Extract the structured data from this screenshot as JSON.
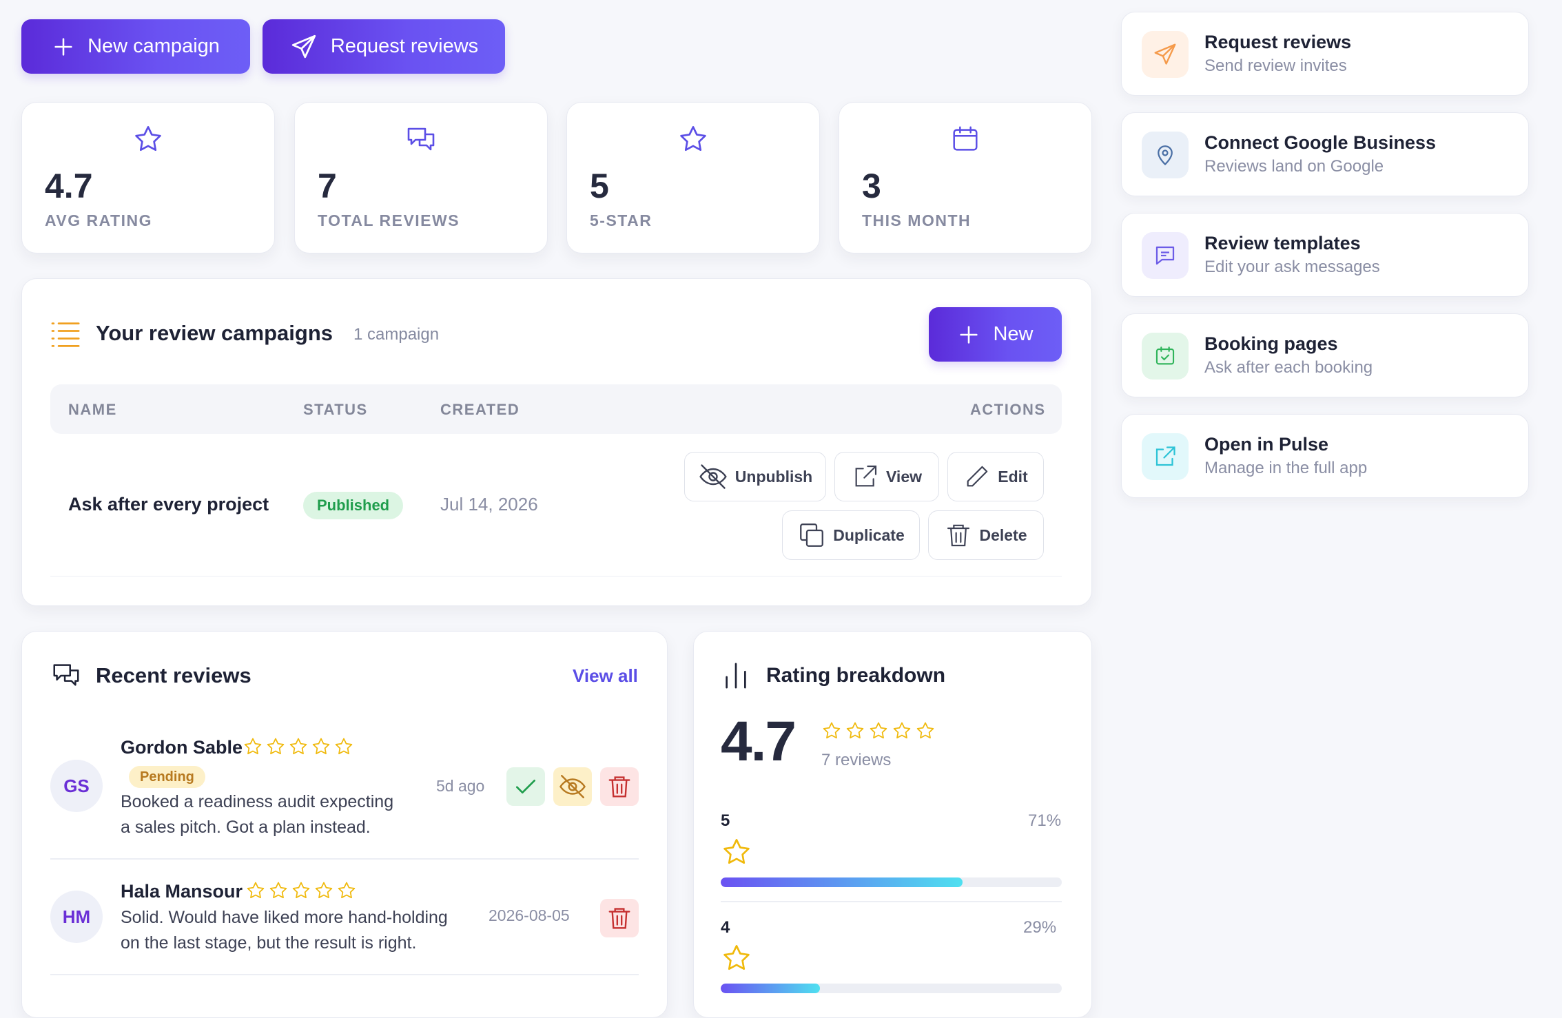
{
  "toolbar": {
    "new_campaign_label": "New campaign",
    "request_reviews_label": "Request reviews"
  },
  "stats": [
    {
      "value": "4.7",
      "label": "AVG RATING",
      "icon": "star-icon"
    },
    {
      "value": "7",
      "label": "TOTAL REVIEWS",
      "icon": "chat-bubbles-icon"
    },
    {
      "value": "5",
      "label": "5-STAR",
      "icon": "star-icon"
    },
    {
      "value": "3",
      "label": "THIS MONTH",
      "icon": "calendar-icon"
    }
  ],
  "campaigns": {
    "title": "Your review campaigns",
    "count": "1 campaign",
    "new_label": "New",
    "columns": {
      "name": "NAME",
      "status": "STATUS",
      "created": "CREATED",
      "actions": "ACTIONS"
    },
    "rows": [
      {
        "name": "Ask after every project",
        "status": "Published",
        "created": "Jul 14, 2026",
        "actions": {
          "unpublish": "Unpublish",
          "view": "View",
          "edit": "Edit",
          "duplicate": "Duplicate",
          "delete": "Delete"
        }
      }
    ]
  },
  "recent_reviews": {
    "title": "Recent reviews",
    "view_all": "View all",
    "items": [
      {
        "initials": "GS",
        "name": "Gordon Sable",
        "badge": "Pending",
        "text_line1": "Booked a readiness audit expecting",
        "text_line2": "a sales pitch. Got a plan instead.",
        "time": "5d ago"
      },
      {
        "initials": "HM",
        "name": "Hala Mansour",
        "text_line1": "Solid. Would have liked more hand-holding",
        "text_line2": "on the last stage, but the result is right.",
        "time": "2026-08-05"
      }
    ]
  },
  "rating_breakdown": {
    "title": "Rating breakdown",
    "average": "4.7",
    "count_label": "7 reviews",
    "rows": [
      {
        "stars": "5",
        "percent_label": "71%",
        "fraction": 0.71
      },
      {
        "stars": "4",
        "percent_label": "29%",
        "fraction": 0.29
      }
    ]
  },
  "sidebar": {
    "items": [
      {
        "title": "Request reviews",
        "subtitle": "Send review invites",
        "icon": "paper-plane-icon",
        "color": "#f59a4a"
      },
      {
        "title": "Connect Google Business",
        "subtitle": "Reviews land on Google",
        "icon": "map-pin-icon",
        "color": "#4a6fa5"
      },
      {
        "title": "Review templates",
        "subtitle": "Edit your ask messages",
        "icon": "message-square-icon",
        "color": "#6c5ce7"
      },
      {
        "title": "Booking pages",
        "subtitle": "Ask after each booking",
        "icon": "calendar-check-icon",
        "color": "#2fb45a"
      },
      {
        "title": "Open in Pulse",
        "subtitle": "Manage in the full app",
        "icon": "external-link-icon",
        "color": "#2cc3d6"
      }
    ]
  },
  "colors": {
    "accent": "#6a52f2",
    "star": "#f0b90b",
    "published": "#1f9d4c",
    "pending": "#b7791f",
    "delete": "#c53030"
  }
}
